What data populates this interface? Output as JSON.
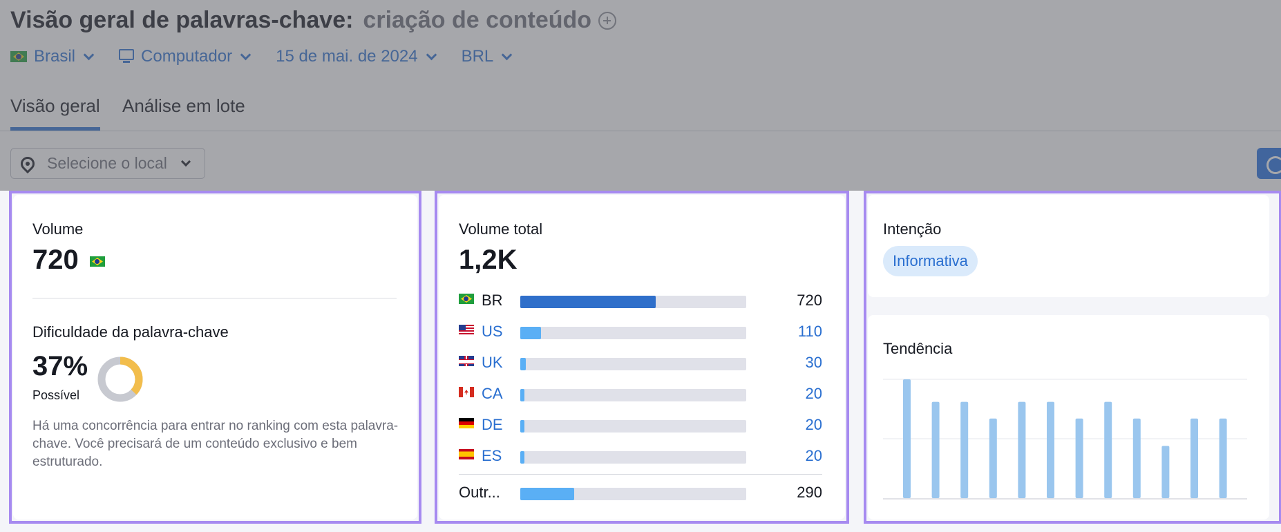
{
  "header": {
    "title": "Visão geral de palavras-chave:",
    "keyword": "criação de conteúdo"
  },
  "filters": {
    "country": "Brasil",
    "device": "Computador",
    "date": "15 de mai. de 2024",
    "currency": "BRL"
  },
  "tabs": [
    "Visão geral",
    "Análise em lote"
  ],
  "location_select": {
    "placeholder": "Selecione o local"
  },
  "volume_card": {
    "label": "Volume",
    "value": "720",
    "difficulty_label": "Dificuldade da palavra-chave",
    "difficulty_value": "37%",
    "difficulty_percent": 37,
    "difficulty_level": "Possível",
    "description": "Há uma concorrência para entrar no ranking com esta palavra-chave. Você precisará de um conteúdo exclusivo e bem estruturado."
  },
  "global_volume_card": {
    "label": "Volume total",
    "value": "1,2K",
    "countries": [
      {
        "code": "BR",
        "value": "720",
        "num": 720,
        "flag": "flag-br-icon"
      },
      {
        "code": "US",
        "value": "110",
        "num": 110,
        "flag": "flag-us-icon"
      },
      {
        "code": "UK",
        "value": "30",
        "num": 30,
        "flag": "flag-uk-icon"
      },
      {
        "code": "CA",
        "value": "20",
        "num": 20,
        "flag": "flag-ca-icon"
      },
      {
        "code": "DE",
        "value": "20",
        "num": 20,
        "flag": "flag-de-icon"
      },
      {
        "code": "ES",
        "value": "20",
        "num": 20,
        "flag": "flag-es-icon"
      }
    ],
    "others": {
      "label": "Outr...",
      "value": "290",
      "num": 290
    }
  },
  "intent_card": {
    "label": "Intenção",
    "badge": "Informativa"
  },
  "trend_card": {
    "label": "Tendência"
  },
  "chart_data": {
    "type": "bar",
    "values": [
      1.0,
      0.81,
      0.81,
      0.67,
      0.81,
      0.81,
      0.67,
      0.81,
      0.67,
      0.44,
      0.67,
      0.67
    ],
    "ylim": [
      0,
      1
    ],
    "grid": true
  },
  "colors": {
    "accent": "#2a6fd0",
    "bar_primary": "#2f6fca",
    "bar_secondary": "#5aaff5",
    "trend_bar": "#9ac6ee",
    "difficulty": "#f2bd4c",
    "highlight_outline": "#a68af0"
  }
}
